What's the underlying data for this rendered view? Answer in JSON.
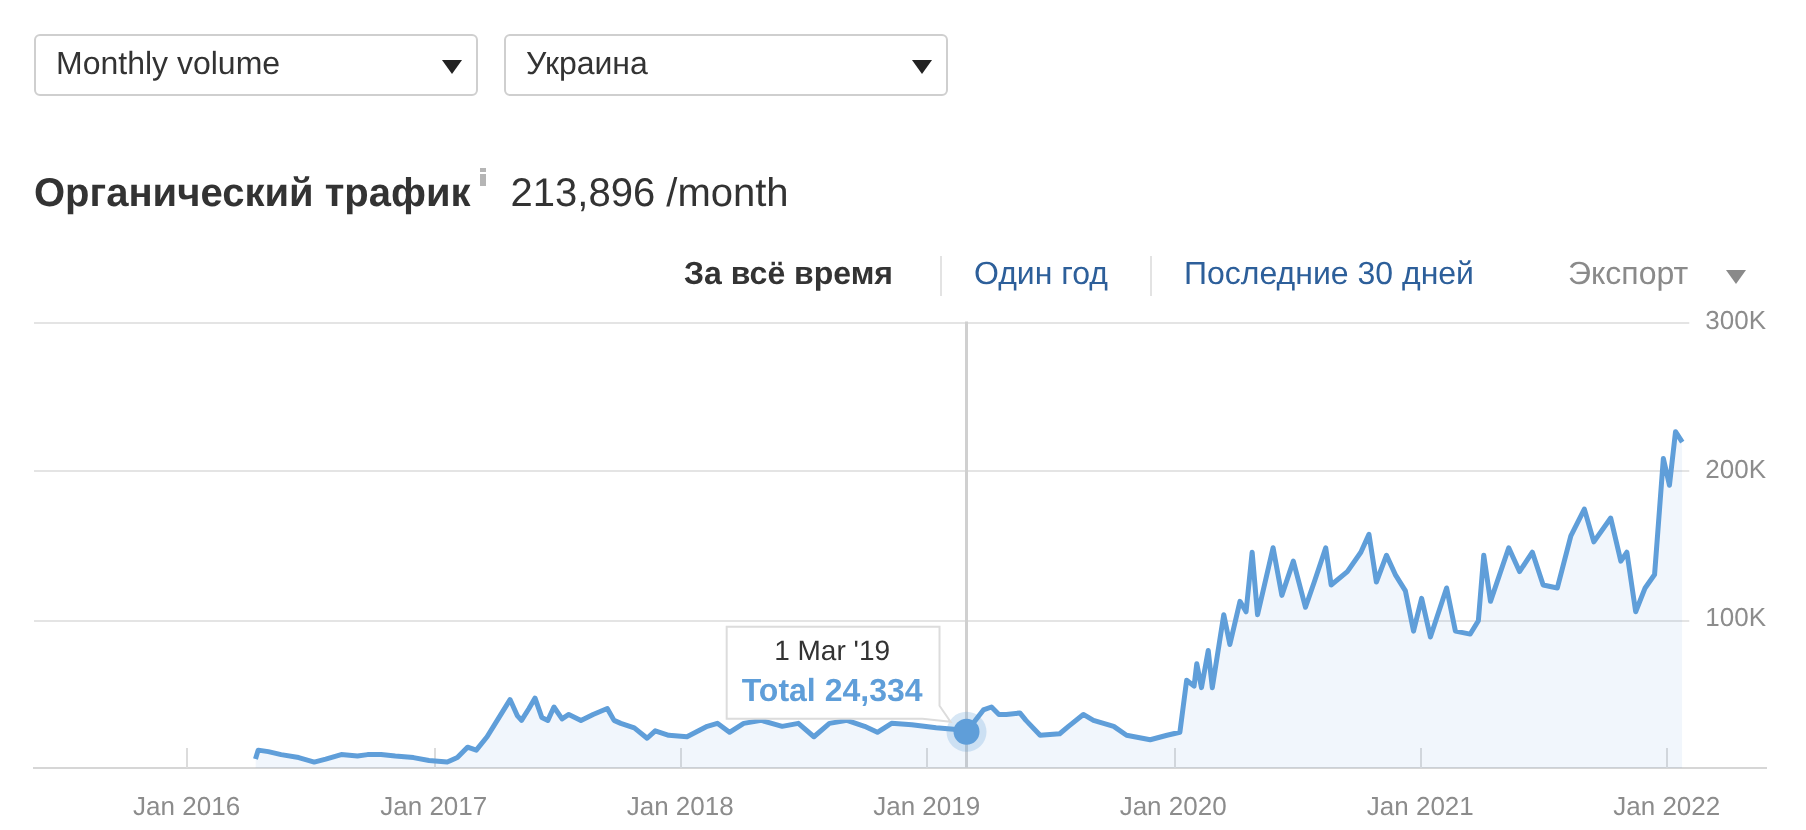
{
  "chart_data": {
    "type": "area",
    "title": "Органический трафик",
    "subtitle": "213,896 /month",
    "annotations": [
      "Monthly volume",
      "Украина",
      "За всё время",
      "Один год",
      "Последние 30 дней",
      "Экспорт",
      "1 Mar '19",
      {
        "text": "Total 24,334",
        "x": "2019-03-01",
        "y": 24334
      }
    ],
    "x": [
      "2016-04-12",
      "2016-04-16",
      "2016-05-01",
      "2016-05-20",
      "2016-06-15",
      "2016-07-08",
      "2016-07-25",
      "2016-08-17",
      "2016-09-10",
      "2016-09-25",
      "2016-10-15",
      "2016-11-05",
      "2016-12-02",
      "2016-12-25",
      "2017-01-21",
      "2017-02-05",
      "2017-02-20",
      "2017-03-05",
      "2017-03-21",
      "2017-04-05",
      "2017-04-24",
      "2017-05-05",
      "2017-05-11",
      "2017-05-22",
      "2017-05-31",
      "2017-06-10",
      "2017-06-19",
      "2017-06-28",
      "2017-07-10",
      "2017-07-20",
      "2017-08-07",
      "2017-08-25",
      "2017-09-15",
      "2017-09-25",
      "2017-10-05",
      "2017-10-25",
      "2017-11-13",
      "2017-11-25",
      "2017-12-15",
      "2018-01-11",
      "2018-02-10",
      "2018-02-25",
      "2018-03-15",
      "2018-04-05",
      "2018-05-01",
      "2018-06-01",
      "2018-06-25",
      "2018-07-18",
      "2018-08-10",
      "2018-09-05",
      "2018-10-01",
      "2018-10-20",
      "2018-11-10",
      "2018-12-10",
      "2019-01-15",
      "2019-02-10",
      "2019-03-01",
      "2019-03-26",
      "2019-04-07",
      "2019-04-18",
      "2019-04-29",
      "2019-05-19",
      "2019-05-28",
      "2019-06-18",
      "2019-07-17",
      "2019-07-30",
      "2019-08-21",
      "2019-09-05",
      "2019-10-05",
      "2019-10-24",
      "2019-11-28",
      "2019-12-23",
      "2020-01-11",
      "2020-01-21",
      "2020-02-01",
      "2020-02-05",
      "2020-02-12",
      "2020-02-22",
      "2020-02-28",
      "2020-03-16",
      "2020-03-25",
      "2020-04-09",
      "2020-04-18",
      "2020-04-27",
      "2020-05-05",
      "2020-05-28",
      "2020-06-10",
      "2020-06-27",
      "2020-07-15",
      "2020-07-28",
      "2020-08-14",
      "2020-08-22",
      "2020-09-15",
      "2020-10-05",
      "2020-10-17",
      "2020-10-28",
      "2020-11-12",
      "2020-11-25",
      "2020-12-10",
      "2020-12-22",
      "2021-01-03",
      "2021-01-16",
      "2021-02-09",
      "2021-02-22",
      "2021-03-16",
      "2021-03-28",
      "2021-04-05",
      "2021-04-15",
      "2021-05-12",
      "2021-05-28",
      "2021-06-16",
      "2021-07-02",
      "2021-07-23",
      "2021-08-12",
      "2021-09-01",
      "2021-09-15",
      "2021-10-10",
      "2021-10-25",
      "2021-11-03",
      "2021-11-16",
      "2021-11-30",
      "2021-12-14",
      "2021-12-27",
      "2022-01-05",
      "2022-01-14",
      "2022-01-24"
    ],
    "values": [
      6000,
      12000,
      11000,
      9000,
      7000,
      4000,
      6000,
      9000,
      8000,
      9000,
      9000,
      8000,
      7000,
      5000,
      4000,
      7000,
      14000,
      12000,
      21000,
      32000,
      46000,
      35000,
      32000,
      40000,
      47000,
      34000,
      32000,
      41000,
      33000,
      36000,
      32000,
      36000,
      40000,
      32000,
      30000,
      27000,
      20000,
      25000,
      22000,
      21000,
      28000,
      30000,
      24000,
      30000,
      32000,
      28000,
      30000,
      21000,
      30000,
      32000,
      28000,
      24000,
      30000,
      29000,
      27000,
      26000,
      24334,
      39000,
      41000,
      36000,
      36000,
      37000,
      32000,
      22000,
      23000,
      28000,
      36000,
      32000,
      28000,
      22000,
      19000,
      22000,
      24000,
      59000,
      55000,
      70000,
      54000,
      79000,
      54000,
      103000,
      83000,
      112000,
      105000,
      145000,
      103000,
      148000,
      116000,
      139000,
      108000,
      125000,
      148000,
      123000,
      132000,
      145000,
      157000,
      125000,
      143000,
      130000,
      119000,
      92000,
      114000,
      88000,
      121000,
      92000,
      90000,
      99000,
      143000,
      112000,
      148000,
      132000,
      145000,
      123000,
      121000,
      156000,
      174000,
      152000,
      168000,
      139000,
      145000,
      105000,
      121000,
      130000,
      208000,
      190000,
      226000,
      219000
    ],
    "color": "#5f9ed9",
    "xlim": [
      "2015-05-20",
      "2022-05-28"
    ],
    "xticks": [
      {
        "value": "2016-01-01",
        "label": "Jan 2016"
      },
      {
        "value": "2017-01-01",
        "label": "Jan 2017"
      },
      {
        "value": "2018-01-01",
        "label": "Jan 2018"
      },
      {
        "value": "2019-01-01",
        "label": "Jan 2019"
      },
      {
        "value": "2020-01-01",
        "label": "Jan 2020"
      },
      {
        "value": "2021-01-01",
        "label": "Jan 2021"
      },
      {
        "value": "2022-01-01",
        "label": "Jan 2022"
      }
    ],
    "ylim": [
      0,
      300000
    ],
    "yticks": [
      {
        "value": 100000,
        "label": "100K"
      },
      {
        "value": 200000,
        "label": "200K"
      },
      {
        "value": 300000,
        "label": "300K"
      }
    ],
    "grid": "y",
    "ref_lines": [
      {
        "axis": "x",
        "value": "2019-03-01",
        "color": "#d0d0d0"
      }
    ]
  }
}
